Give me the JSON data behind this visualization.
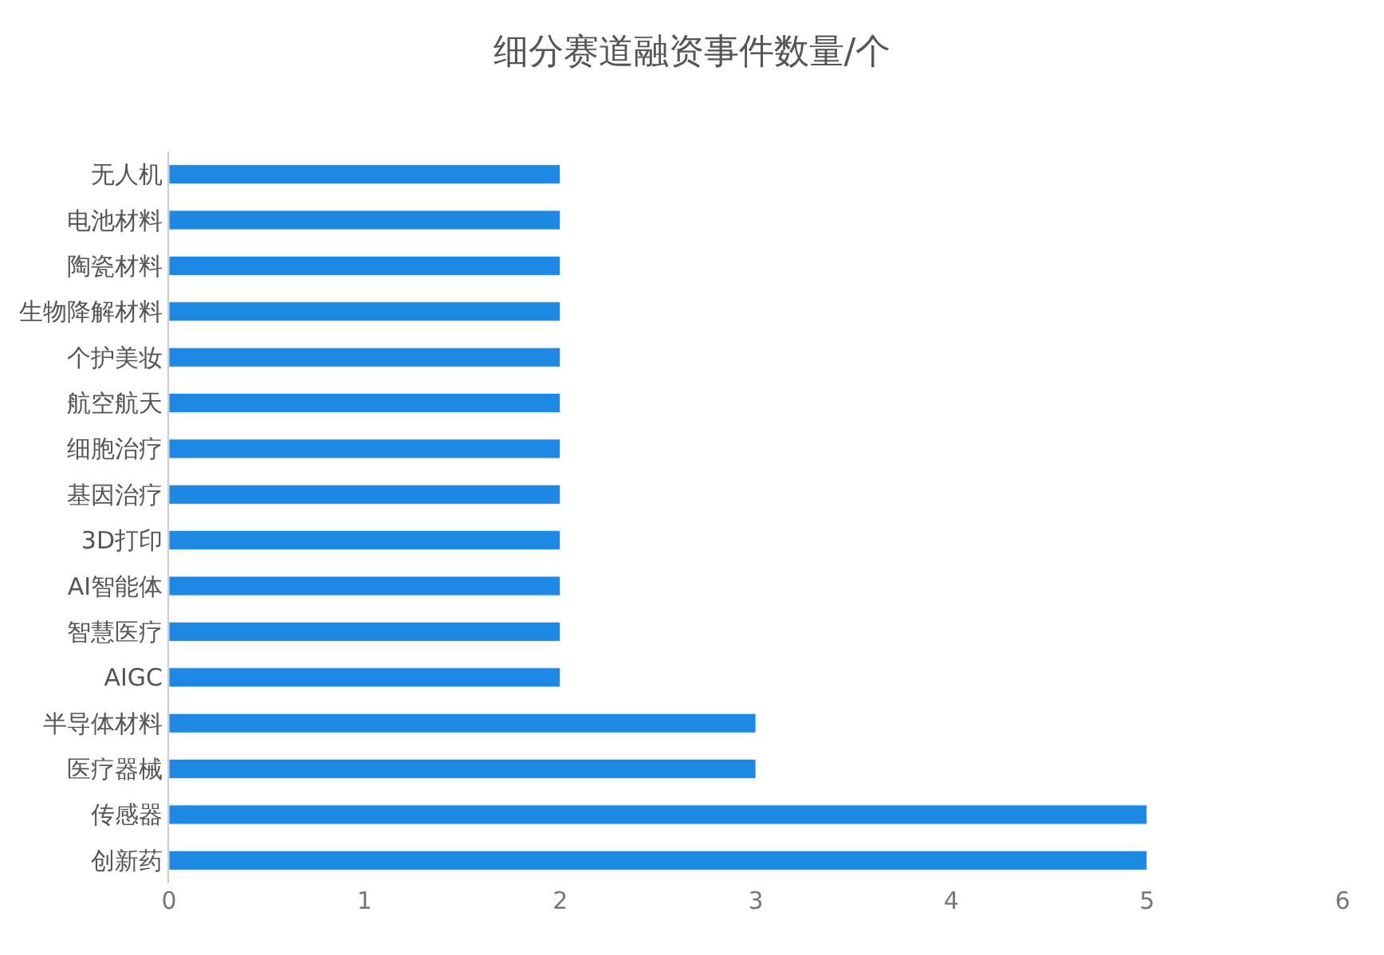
{
  "chart_data": {
    "type": "bar",
    "orientation": "horizontal",
    "title": "细分赛道融资事件数量/个",
    "categories": [
      "无人机",
      "电池材料",
      "陶瓷材料",
      "生物降解材料",
      "个护美妆",
      "航空航天",
      "细胞治疗",
      "基因治疗",
      "3D打印",
      "AI智能体",
      "智慧医疗",
      "AIGC",
      "半导体材料",
      "医疗器械",
      "传感器",
      "创新药"
    ],
    "values": [
      2,
      2,
      2,
      2,
      2,
      2,
      2,
      2,
      2,
      2,
      2,
      2,
      3,
      3,
      5,
      5
    ],
    "color": "#1e88e5",
    "xlim": [
      0,
      6
    ],
    "xticks": [
      0,
      1,
      2,
      3,
      4,
      5,
      6
    ]
  }
}
